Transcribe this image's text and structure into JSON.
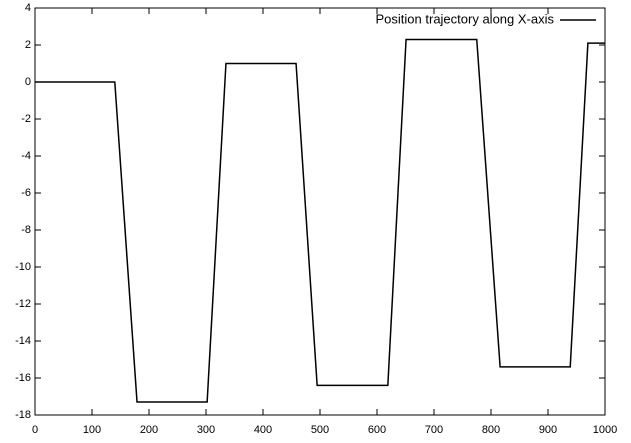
{
  "chart_data": {
    "type": "line",
    "x": [
      0,
      140,
      179,
      302,
      335,
      458,
      495,
      619,
      651,
      775,
      816,
      939,
      970,
      1000
    ],
    "series": [
      {
        "name": "Position trajectory along X-axis",
        "color": "#000000",
        "values": [
          0,
          0,
          -17.3,
          -17.3,
          1.0,
          1.0,
          -16.4,
          -16.4,
          2.3,
          2.3,
          -15.4,
          -15.4,
          2.1,
          2.1
        ]
      }
    ],
    "xlim": [
      0,
      1000
    ],
    "xticks": [
      0,
      100,
      200,
      300,
      400,
      500,
      600,
      700,
      800,
      900,
      1000
    ],
    "ylim": [
      -18,
      4
    ],
    "yticks": [
      -18,
      -16,
      -14,
      -12,
      -10,
      -8,
      -6,
      -4,
      -2,
      0,
      2,
      4
    ],
    "grid": false,
    "legend": "top-right"
  }
}
